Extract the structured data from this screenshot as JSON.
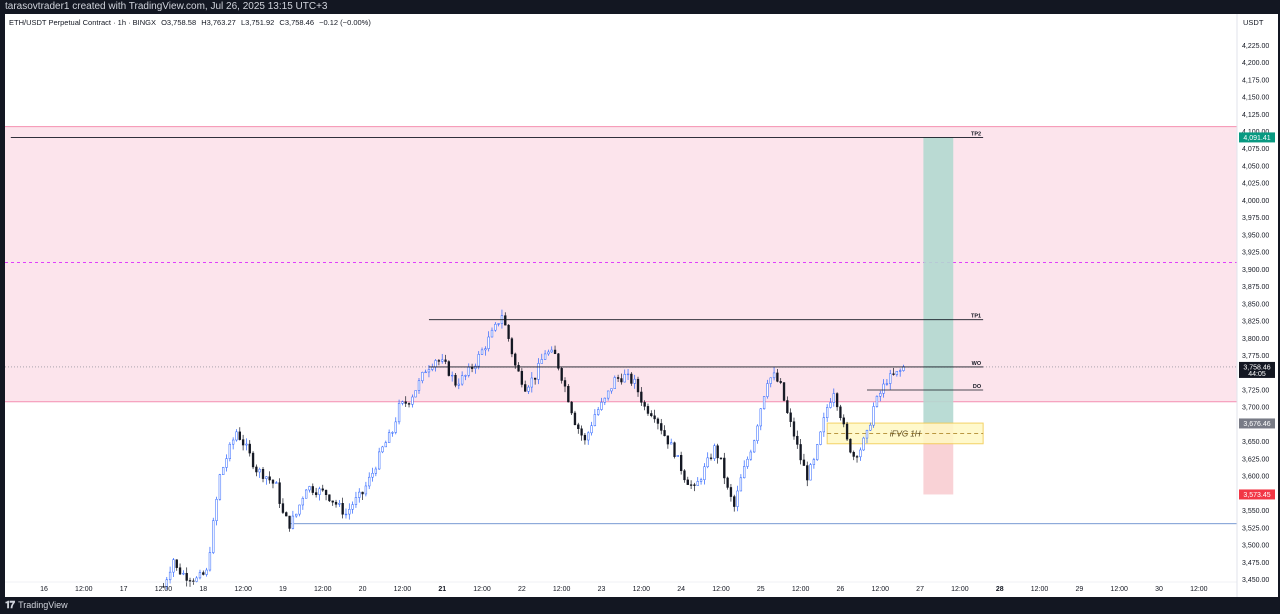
{
  "header": {
    "credit": "tarasovtrader1 created with TradingView.com, Jul 26, 2025 13:15 UTC+3"
  },
  "legend": {
    "symbol": "ETH/USDT Perpetual Contract · 1h · BINGX",
    "open": "O3,758.58",
    "high": "H3,763.27",
    "low": "L3,751.92",
    "close": "C3,758.46",
    "change": "−0.12 (−0.00%)"
  },
  "currency": "USDT",
  "footer": {
    "brand": "TradingView"
  },
  "colors": {
    "up_body": "#ffffff",
    "up_border": "#2962ff",
    "down_body": "#131722",
    "premium_zone": "#fce4ec",
    "premium_edge": "#f48fb1",
    "target_box": "#b2d8d0",
    "stop_box": "#f8cdd2",
    "fvg_box": "#fff9c4",
    "fvg_edge": "#f2c94c",
    "level_line": "#131722",
    "support_line": "#4a78c4",
    "mid_dash": "#e040fb"
  },
  "chart_data": {
    "type": "candlestick",
    "ylim": [
      3445,
      4240
    ],
    "y_ticks": [
      "4,225.00",
      "4,200.00",
      "4,175.00",
      "4,150.00",
      "4,125.00",
      "4,100.00",
      "4,075.00",
      "4,050.00",
      "4,025.00",
      "4,000.00",
      "3,975.00",
      "3,950.00",
      "3,925.00",
      "3,900.00",
      "3,875.00",
      "3,850.00",
      "3,825.00",
      "3,800.00",
      "3,775.00",
      "3,750.00",
      "3,725.00",
      "3,700.00",
      "3,675.00",
      "3,650.00",
      "3,625.00",
      "3,600.00",
      "3,575.00",
      "3,550.00",
      "3,525.00",
      "3,500.00",
      "3,475.00",
      "3,450.00"
    ],
    "x_ticks": [
      {
        "label": "16",
        "bar": -30
      },
      {
        "label": "12:00",
        "bar": -18
      },
      {
        "label": "17",
        "bar": -6
      },
      {
        "label": "12:00",
        "bar": 6
      },
      {
        "label": "18",
        "bar": 18
      },
      {
        "label": "12:00",
        "bar": 30
      },
      {
        "label": "19",
        "bar": 42
      },
      {
        "label": "12:00",
        "bar": 54
      },
      {
        "label": "20",
        "bar": 66
      },
      {
        "label": "12:00",
        "bar": 78
      },
      {
        "label": "21",
        "bar": 90,
        "bold": true
      },
      {
        "label": "12:00",
        "bar": 102
      },
      {
        "label": "22",
        "bar": 114
      },
      {
        "label": "12:00",
        "bar": 126
      },
      {
        "label": "23",
        "bar": 138
      },
      {
        "label": "12:00",
        "bar": 150
      },
      {
        "label": "24",
        "bar": 162
      },
      {
        "label": "12:00",
        "bar": 174
      },
      {
        "label": "25",
        "bar": 186
      },
      {
        "label": "12:00",
        "bar": 198
      },
      {
        "label": "26",
        "bar": 210
      },
      {
        "label": "12:00",
        "bar": 222
      },
      {
        "label": "27",
        "bar": 234
      },
      {
        "label": "12:00",
        "bar": 246
      },
      {
        "label": "28",
        "bar": 258,
        "bold": true
      },
      {
        "label": "12:00",
        "bar": 270
      },
      {
        "label": "29",
        "bar": 282
      },
      {
        "label": "12:00",
        "bar": 294
      },
      {
        "label": "30",
        "bar": 306
      },
      {
        "label": "12:00",
        "bar": 318
      }
    ],
    "bar_origin": "2025-07-18 00:00 UTC+3 = bar 18; 1 bar = 1h",
    "candles": [],
    "waypoints": [
      [
        6,
        3440
      ],
      [
        9,
        3480
      ],
      [
        10,
        3465
      ],
      [
        13,
        3455
      ],
      [
        16,
        3450
      ],
      [
        19,
        3460
      ],
      [
        21,
        3530
      ],
      [
        23,
        3600
      ],
      [
        26,
        3640
      ],
      [
        28,
        3665
      ],
      [
        31,
        3640
      ],
      [
        34,
        3610
      ],
      [
        37,
        3600
      ],
      [
        40,
        3585
      ],
      [
        42,
        3545
      ],
      [
        44,
        3530
      ],
      [
        46,
        3545
      ],
      [
        49,
        3585
      ],
      [
        52,
        3580
      ],
      [
        55,
        3575
      ],
      [
        58,
        3560
      ],
      [
        61,
        3545
      ],
      [
        63,
        3560
      ],
      [
        66,
        3575
      ],
      [
        69,
        3605
      ],
      [
        72,
        3640
      ],
      [
        75,
        3665
      ],
      [
        77,
        3700
      ],
      [
        80,
        3710
      ],
      [
        83,
        3735
      ],
      [
        85,
        3755
      ],
      [
        88,
        3770
      ],
      [
        91,
        3760
      ],
      [
        94,
        3735
      ],
      [
        97,
        3745
      ],
      [
        100,
        3765
      ],
      [
        103,
        3790
      ],
      [
        106,
        3815
      ],
      [
        108,
        3835
      ],
      [
        110,
        3800
      ],
      [
        112,
        3760
      ],
      [
        115,
        3730
      ],
      [
        118,
        3745
      ],
      [
        121,
        3780
      ],
      [
        124,
        3775
      ],
      [
        127,
        3730
      ],
      [
        130,
        3680
      ],
      [
        133,
        3650
      ],
      [
        136,
        3690
      ],
      [
        139,
        3710
      ],
      [
        142,
        3740
      ],
      [
        145,
        3745
      ],
      [
        148,
        3735
      ],
      [
        151,
        3700
      ],
      [
        154,
        3690
      ],
      [
        157,
        3660
      ],
      [
        160,
        3635
      ],
      [
        163,
        3600
      ],
      [
        166,
        3580
      ],
      [
        169,
        3610
      ],
      [
        172,
        3640
      ],
      [
        174,
        3620
      ],
      [
        176,
        3580
      ],
      [
        178,
        3555
      ],
      [
        180,
        3595
      ],
      [
        182,
        3625
      ],
      [
        184,
        3655
      ],
      [
        186,
        3700
      ],
      [
        188,
        3740
      ],
      [
        190,
        3745
      ],
      [
        192,
        3730
      ],
      [
        194,
        3690
      ],
      [
        196,
        3660
      ],
      [
        198,
        3625
      ],
      [
        200,
        3600
      ],
      [
        202,
        3620
      ],
      [
        204,
        3660
      ],
      [
        206,
        3700
      ],
      [
        208,
        3725
      ],
      [
        210,
        3690
      ],
      [
        212,
        3650
      ],
      [
        214,
        3630
      ],
      [
        216,
        3640
      ],
      [
        218,
        3660
      ],
      [
        220,
        3700
      ],
      [
        222,
        3720
      ],
      [
        224,
        3740
      ],
      [
        226,
        3745
      ],
      [
        228,
        3752
      ],
      [
        229,
        3758
      ]
    ],
    "annotations": {
      "premium_zone": {
        "from": 3708,
        "to": 4107
      },
      "mid_dashed_line": 3910,
      "levels": [
        {
          "label": "TP2",
          "price": 4091.41,
          "from_bar": -40,
          "to_bar": 253
        },
        {
          "label": "TP1",
          "price": 3827,
          "from_bar": 86,
          "to_bar": 253
        },
        {
          "label": "WO",
          "price": 3758.46,
          "from_bar": 86,
          "to_bar": 253
        },
        {
          "label": "DO",
          "price": 3725,
          "from_bar": 218,
          "to_bar": 253
        }
      ],
      "support_line": {
        "price": 3531,
        "from_bar": 44
      },
      "position": {
        "from_bar": 235,
        "to_bar": 244,
        "target": 4091.41,
        "entry": 3676.46,
        "stop": 3573.45
      },
      "fvg": {
        "label": "iFVG 1H",
        "top": 3677,
        "bottom": 3647,
        "from_bar": 206,
        "to_bar": 253
      }
    },
    "price_tags": [
      {
        "text": "4,091.41",
        "price": 4091.41,
        "bg": "#089981",
        "fg": "#ffffff"
      },
      {
        "text": "3,758.46",
        "price": 3758.46,
        "bg": "#131722",
        "fg": "#ffffff",
        "sub": "44:05"
      },
      {
        "text": "3,676.46",
        "price": 3676.46,
        "bg": "#787b86",
        "fg": "#ffffff"
      },
      {
        "text": "3,573.45",
        "price": 3573.45,
        "bg": "#f23645",
        "fg": "#ffffff"
      }
    ]
  }
}
